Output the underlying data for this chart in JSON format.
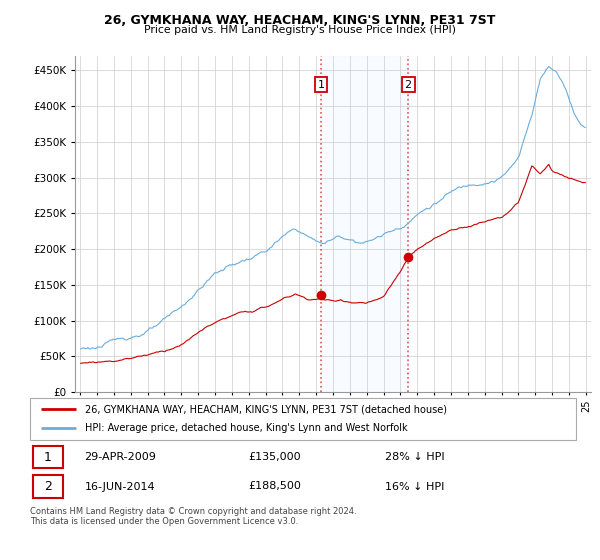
{
  "title": "26, GYMKHANA WAY, HEACHAM, KING'S LYNN, PE31 7ST",
  "subtitle": "Price paid vs. HM Land Registry's House Price Index (HPI)",
  "sale1_date": "29-APR-2009",
  "sale1_price": 135000,
  "sale1_year": 2009,
  "sale1_month": 4,
  "sale1_pct": "28% ↓ HPI",
  "sale2_date": "16-JUN-2014",
  "sale2_price": 188500,
  "sale2_year": 2014,
  "sale2_month": 6,
  "sale2_pct": "16% ↓ HPI",
  "legend_red": "26, GYMKHANA WAY, HEACHAM, KING'S LYNN, PE31 7ST (detached house)",
  "legend_blue": "HPI: Average price, detached house, King's Lynn and West Norfolk",
  "footer": "Contains HM Land Registry data © Crown copyright and database right 2024.\nThis data is licensed under the Open Government Licence v3.0.",
  "ylim": [
    0,
    470000
  ],
  "yticks": [
    0,
    50000,
    100000,
    150000,
    200000,
    250000,
    300000,
    350000,
    400000,
    450000
  ],
  "color_red": "#cc0000",
  "color_blue": "#6aaddc",
  "color_shade": "#ddeeff",
  "vline_color": "#dd4444",
  "annotation_box_color": "#cc0000",
  "xstart": 1995,
  "xend": 2025,
  "hpi_keypoints": [
    [
      1995.0,
      60000
    ],
    [
      1996.0,
      63000
    ],
    [
      1997.0,
      68000
    ],
    [
      1998.0,
      76000
    ],
    [
      1999.0,
      85000
    ],
    [
      2000.0,
      95000
    ],
    [
      2001.0,
      110000
    ],
    [
      2002.0,
      135000
    ],
    [
      2003.0,
      158000
    ],
    [
      2004.0,
      170000
    ],
    [
      2005.0,
      178000
    ],
    [
      2006.0,
      188000
    ],
    [
      2007.0,
      205000
    ],
    [
      2007.8,
      215000
    ],
    [
      2008.5,
      205000
    ],
    [
      2009.0,
      197000
    ],
    [
      2009.5,
      195000
    ],
    [
      2010.0,
      200000
    ],
    [
      2010.5,
      203000
    ],
    [
      2011.0,
      200000
    ],
    [
      2012.0,
      198000
    ],
    [
      2013.0,
      208000
    ],
    [
      2014.0,
      220000
    ],
    [
      2015.0,
      240000
    ],
    [
      2016.0,
      255000
    ],
    [
      2017.0,
      270000
    ],
    [
      2018.0,
      278000
    ],
    [
      2019.0,
      288000
    ],
    [
      2020.0,
      296000
    ],
    [
      2021.0,
      320000
    ],
    [
      2021.8,
      380000
    ],
    [
      2022.3,
      435000
    ],
    [
      2022.8,
      450000
    ],
    [
      2023.3,
      440000
    ],
    [
      2023.8,
      420000
    ],
    [
      2024.3,
      385000
    ],
    [
      2024.8,
      370000
    ]
  ],
  "red_keypoints": [
    [
      1995.0,
      40000
    ],
    [
      1996.0,
      42000
    ],
    [
      1997.0,
      45000
    ],
    [
      1998.0,
      50000
    ],
    [
      1999.0,
      56000
    ],
    [
      2000.0,
      62000
    ],
    [
      2001.0,
      72000
    ],
    [
      2002.0,
      88000
    ],
    [
      2003.0,
      103000
    ],
    [
      2004.0,
      111000
    ],
    [
      2005.0,
      116000
    ],
    [
      2006.0,
      122000
    ],
    [
      2007.0,
      133000
    ],
    [
      2007.8,
      140000
    ],
    [
      2008.5,
      133000
    ],
    [
      2009.33,
      135000
    ],
    [
      2009.5,
      133000
    ],
    [
      2010.0,
      130000
    ],
    [
      2010.5,
      132000
    ],
    [
      2011.0,
      130000
    ],
    [
      2012.0,
      129000
    ],
    [
      2013.0,
      135000
    ],
    [
      2014.5,
      188500
    ],
    [
      2015.0,
      200000
    ],
    [
      2016.0,
      213000
    ],
    [
      2017.0,
      225000
    ],
    [
      2018.0,
      232000
    ],
    [
      2019.0,
      240000
    ],
    [
      2020.0,
      247000
    ],
    [
      2021.0,
      267000
    ],
    [
      2021.8,
      317000
    ],
    [
      2022.3,
      305000
    ],
    [
      2022.8,
      320000
    ],
    [
      2023.0,
      310000
    ],
    [
      2023.5,
      305000
    ],
    [
      2024.0,
      298000
    ],
    [
      2024.5,
      295000
    ],
    [
      2024.8,
      293000
    ]
  ]
}
